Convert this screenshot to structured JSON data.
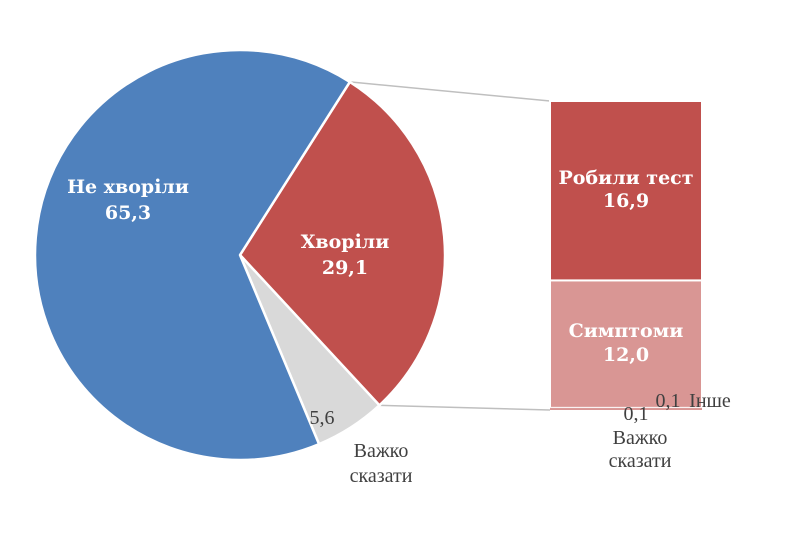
{
  "chart_data": {
    "type": "pie",
    "variant": "bar-of-pie",
    "pie": {
      "slices": [
        {
          "label": "Не хворіли",
          "value": 65.3,
          "value_text": "65,3",
          "color": "#4f81bd"
        },
        {
          "label": "Хворіли",
          "value": 29.1,
          "value_text": "29,1",
          "color": "#c0504d"
        },
        {
          "label": "Важко сказати",
          "label_lines": [
            "Важко",
            "сказати"
          ],
          "value": 5.6,
          "value_text": "5,6",
          "color": "#d9d9d9"
        }
      ]
    },
    "bar": {
      "segments": [
        {
          "label": "Робили тест",
          "value": 16.9,
          "value_text": "16,9",
          "color": "#c0504d"
        },
        {
          "label": "Симптоми",
          "value": 12.0,
          "value_text": "12,0",
          "color": "#d99694"
        },
        {
          "label": "Важко сказати",
          "label_lines": [
            "Важко",
            "сказати"
          ],
          "value": 0.1,
          "value_text": "0,1",
          "color": "#d99694"
        },
        {
          "label": "Інше",
          "value": 0.1,
          "value_text": "0,1",
          "color": "#d99694"
        }
      ]
    },
    "connector_color": "#bfbfbf"
  }
}
